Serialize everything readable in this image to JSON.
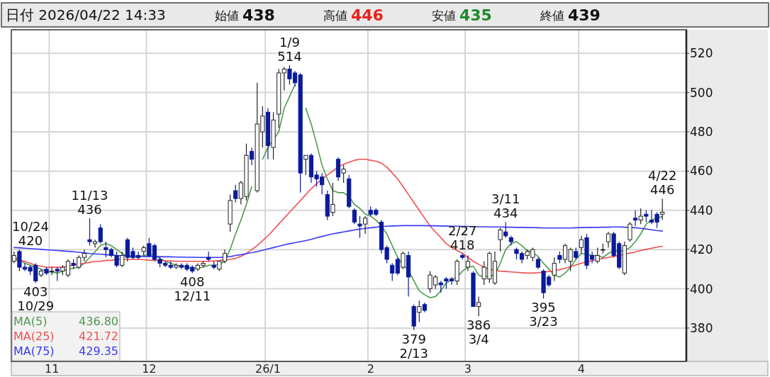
{
  "chart_data": {
    "type": "candlestick",
    "title": "日付 2026/04/22 14:33",
    "annotations": [
      "始値",
      "438",
      "高値",
      "446",
      "安値",
      "435",
      "終値",
      "439",
      {
        "text": "10/24\n420",
        "y": 420
      },
      {
        "text": "403\n10/29",
        "y": 403
      },
      {
        "text": "11/13\n436",
        "y": 436
      },
      {
        "text": "408\n12/11",
        "y": 408
      },
      {
        "text": "1/9\n514",
        "y": 514
      },
      {
        "text": "379\n2/13",
        "y": 379
      },
      {
        "text": "2/27\n418",
        "y": 418
      },
      {
        "text": "386\n3/4",
        "y": 386
      },
      {
        "text": "3/11\n434",
        "y": 434
      },
      {
        "text": "395\n3/23",
        "y": 395
      },
      {
        "text": "4/22\n446",
        "y": 446
      }
    ],
    "categories": [
      null,
      null,
      null,
      null,
      null,
      null,
      null,
      "11",
      null,
      null,
      null,
      null,
      null,
      null,
      null,
      null,
      null,
      null,
      null,
      null,
      null,
      null,
      null,
      null,
      null,
      "12",
      null,
      null,
      null,
      null,
      null,
      null,
      null,
      null,
      null,
      null,
      null,
      null,
      null,
      null,
      null,
      null,
      null,
      null,
      null,
      null,
      null,
      "26/1",
      null,
      null,
      null,
      null,
      null,
      null,
      null,
      null,
      null,
      null,
      null,
      null,
      null,
      null,
      null,
      null,
      null,
      null,
      "2",
      null,
      null,
      null,
      null,
      null,
      null,
      null,
      null,
      null,
      null,
      null,
      null,
      null,
      null,
      null,
      null,
      null,
      "3",
      null,
      null,
      null,
      null,
      null,
      null,
      null,
      null,
      null,
      null,
      null,
      null,
      null,
      null,
      null,
      null,
      null,
      null,
      null,
      null,
      "4",
      null,
      null,
      null,
      null,
      null,
      null,
      null,
      null,
      null,
      null,
      null,
      null,
      null,
      null,
      null
    ],
    "ohlc": [
      [
        414,
        419,
        413,
        417
      ],
      [
        419,
        420,
        409,
        411
      ],
      [
        411,
        413,
        409,
        410
      ],
      [
        411,
        412,
        407,
        409
      ],
      [
        412,
        413,
        403,
        404
      ],
      [
        407,
        410,
        406,
        409
      ],
      [
        410,
        411,
        407,
        408
      ],
      [
        409,
        411,
        407,
        409
      ],
      [
        410,
        411,
        404,
        409
      ],
      [
        409,
        412,
        407,
        411
      ],
      [
        407,
        415,
        406,
        414
      ],
      [
        413,
        415,
        410,
        412
      ],
      [
        411,
        417,
        410,
        416
      ],
      [
        416,
        420,
        414,
        418
      ],
      [
        425,
        436,
        422,
        424
      ],
      [
        423,
        425,
        421,
        424
      ],
      [
        431,
        433,
        423,
        424
      ],
      [
        421,
        424,
        416,
        420
      ],
      [
        420,
        421,
        416,
        417
      ],
      [
        417,
        419,
        411,
        412
      ],
      [
        412,
        419,
        411,
        417
      ],
      [
        425,
        426,
        414,
        416
      ],
      [
        419,
        421,
        415,
        416
      ],
      [
        417,
        419,
        415,
        416
      ],
      [
        419,
        422,
        417,
        421
      ],
      [
        423,
        426,
        416,
        417
      ],
      [
        422,
        423,
        414,
        415
      ],
      [
        415,
        416,
        411,
        413
      ],
      [
        413,
        414,
        411,
        412
      ],
      [
        412,
        414,
        410,
        411
      ],
      [
        411,
        413,
        410,
        412
      ],
      [
        412,
        413,
        410,
        411
      ],
      [
        412,
        413,
        409,
        410
      ],
      [
        411,
        412,
        408,
        409
      ],
      [
        410,
        413,
        409,
        412
      ],
      [
        412,
        414,
        411,
        413
      ],
      [
        416,
        419,
        414,
        415
      ],
      [
        412,
        414,
        410,
        411
      ],
      [
        410,
        414,
        409,
        414
      ],
      [
        414,
        420,
        413,
        418
      ],
      [
        433,
        448,
        429,
        445
      ],
      [
        450,
        453,
        444,
        446
      ],
      [
        446,
        455,
        443,
        454
      ],
      [
        447,
        474,
        445,
        468
      ],
      [
        470,
        472,
        463,
        466
      ],
      [
        450,
        505,
        449,
        484
      ],
      [
        480,
        493,
        472,
        488
      ],
      [
        490,
        492,
        466,
        473
      ],
      [
        472,
        490,
        466,
        486
      ],
      [
        489,
        512,
        482,
        510
      ],
      [
        510,
        513,
        501,
        512
      ],
      [
        512,
        514,
        504,
        507
      ],
      [
        510,
        511,
        503,
        505
      ],
      [
        509,
        510,
        449,
        459
      ],
      [
        466,
        468,
        458,
        468
      ],
      [
        468,
        469,
        454,
        457
      ],
      [
        458,
        460,
        452,
        456
      ],
      [
        457,
        459,
        448,
        453
      ],
      [
        448,
        450,
        435,
        437
      ],
      [
        439,
        454,
        437,
        443
      ],
      [
        466,
        467,
        455,
        457
      ],
      [
        459,
        463,
        454,
        461
      ],
      [
        456,
        458,
        441,
        442
      ],
      [
        440,
        441,
        433,
        434
      ],
      [
        433,
        437,
        426,
        432
      ],
      [
        433,
        437,
        428,
        436
      ],
      [
        440,
        442,
        437,
        438
      ],
      [
        440,
        441,
        437,
        438
      ],
      [
        434,
        435,
        418,
        420
      ],
      [
        421,
        422,
        413,
        415
      ],
      [
        412,
        413,
        404,
        408
      ],
      [
        415,
        416,
        407,
        408
      ],
      [
        411,
        419,
        410,
        418
      ],
      [
        417,
        419,
        396,
        406
      ],
      [
        391,
        392,
        379,
        381
      ],
      [
        388,
        394,
        383,
        391
      ],
      [
        392,
        393,
        388,
        389
      ],
      [
        400,
        409,
        398,
        407
      ],
      [
        402,
        407,
        400,
        406
      ],
      [
        403,
        404,
        398,
        402
      ],
      [
        405,
        406,
        400,
        404
      ],
      [
        405,
        406,
        402,
        404
      ],
      [
        404,
        415,
        402,
        414
      ],
      [
        417,
        418,
        415,
        416
      ],
      [
        411,
        417,
        409,
        414
      ],
      [
        408,
        409,
        391,
        391
      ],
      [
        391,
        396,
        386,
        393
      ],
      [
        405,
        414,
        402,
        411
      ],
      [
        405,
        419,
        403,
        418
      ],
      [
        403,
        419,
        402,
        414
      ],
      [
        425,
        431,
        419,
        430
      ],
      [
        429,
        434,
        426,
        427
      ],
      [
        426,
        427,
        422,
        424
      ],
      [
        420,
        421,
        415,
        418
      ],
      [
        418,
        419,
        413,
        415
      ],
      [
        417,
        420,
        415,
        419
      ],
      [
        416,
        421,
        414,
        420
      ],
      [
        415,
        416,
        410,
        411
      ],
      [
        409,
        410,
        395,
        398
      ],
      [
        406,
        407,
        401,
        402
      ],
      [
        407,
        416,
        404,
        413
      ],
      [
        417,
        419,
        413,
        415
      ],
      [
        415,
        423,
        413,
        422
      ],
      [
        414,
        421,
        409,
        420
      ],
      [
        419,
        421,
        415,
        416
      ],
      [
        421,
        427,
        418,
        425
      ],
      [
        426,
        428,
        410,
        412
      ],
      [
        417,
        419,
        413,
        415
      ],
      [
        414,
        421,
        413,
        417
      ],
      [
        420,
        423,
        418,
        420
      ],
      [
        424,
        429,
        421,
        428
      ],
      [
        428,
        429,
        416,
        417
      ],
      [
        423,
        424,
        410,
        411
      ],
      [
        408,
        424,
        407,
        422
      ],
      [
        425,
        434,
        424,
        433
      ],
      [
        436,
        440,
        432,
        435
      ],
      [
        435,
        441,
        433,
        437
      ],
      [
        438,
        440,
        434,
        437
      ],
      [
        435,
        440,
        433,
        434
      ],
      [
        438,
        439,
        431,
        434
      ],
      [
        438,
        446,
        435,
        439
      ]
    ],
    "series": [
      {
        "name": "MA(5) 436.80",
        "type": "line",
        "color": "#4f9a4f",
        "values": [
          416,
          415,
          413,
          412,
          411,
          410,
          409,
          408.5,
          408,
          409,
          410,
          410.5,
          411,
          413,
          416,
          419,
          422,
          423,
          422,
          420,
          418,
          416.5,
          416,
          416,
          417,
          417.5,
          417,
          415.5,
          414,
          413,
          412,
          411.5,
          411,
          410.5,
          410.5,
          411,
          412,
          412,
          412.5,
          414,
          420,
          428,
          435,
          443,
          452,
          null,
          466,
          472,
          476,
          480,
          492,
          498,
          504,
          null,
          492,
          484,
          474,
          463,
          456,
          450,
          449,
          449,
          447,
          443,
          441,
          438,
          437,
          435,
          432,
          428,
          422,
          416,
          412,
          409.5,
          404,
          399,
          397,
          395.5,
          396,
          399,
          403,
          404.5,
          406,
          409,
          411,
          411.5,
          407,
          406,
          406.5,
          407,
          413,
          420,
          423,
          424,
          422,
          419.5,
          418.5,
          416.5,
          413,
          410,
          407,
          406,
          408,
          411,
          415,
          418,
          417.5,
          417,
          417,
          416,
          418,
          419.5,
          419,
          419.5,
          421,
          424,
          428,
          433,
          435,
          436,
          436.8
        ]
      },
      {
        "name": "MA(25) 421.72",
        "type": "line",
        "color": "#f05050",
        "values": [
          415,
          414.5,
          414,
          413,
          412,
          411.5,
          411,
          411,
          411,
          411,
          411.5,
          412,
          412.5,
          413,
          413.5,
          414,
          414,
          414.5,
          414.5,
          415,
          415,
          415,
          415,
          415,
          414.8,
          414.6,
          414.5,
          414.4,
          414.3,
          414.2,
          414.1,
          414,
          414,
          414,
          414,
          414,
          414,
          414.2,
          414.4,
          414.7,
          415,
          415.5,
          416.5,
          418,
          420,
          422,
          424.5,
          427,
          430,
          433,
          436,
          439,
          442,
          445,
          448,
          451,
          453.5,
          456,
          458,
          460,
          462,
          463.5,
          464.5,
          465.5,
          466,
          466,
          465.5,
          465,
          464,
          462,
          459,
          456,
          452,
          448,
          444,
          440,
          436,
          432,
          429,
          426,
          423,
          421,
          419.5,
          418,
          416,
          414,
          412.5,
          411,
          410,
          409.5,
          409,
          408.8,
          408.6,
          408.4,
          408.2,
          408,
          408,
          408.2,
          408.5,
          408.8,
          409.2,
          409.8,
          410.5,
          411.3,
          412.2,
          413,
          413.7,
          414.3,
          414.9,
          415.5,
          416,
          416.5,
          417,
          417.6,
          418.2,
          418.8,
          419.5,
          420.1,
          420.7,
          421.2,
          421.7
        ]
      },
      {
        "name": "MA(75) 429.35",
        "type": "line",
        "color": "#3a3af0",
        "values": [
          421,
          420.9,
          420.7,
          420.5,
          420.3,
          420.1,
          419.9,
          419.7,
          419.5,
          419.3,
          419.1,
          418.9,
          418.6,
          418.3,
          418,
          417.8,
          417.6,
          417.4,
          417.2,
          417,
          416.9,
          416.8,
          416.7,
          416.6,
          416.5,
          416.5,
          416.4,
          416.4,
          416.3,
          416.3,
          416.2,
          416.2,
          416.1,
          416.1,
          416,
          416,
          416,
          416,
          416,
          416.2,
          416.4,
          417,
          417.4,
          417.9,
          418.4,
          419,
          419.6,
          420.3,
          421,
          421.7,
          422.4,
          423,
          423.5,
          424,
          424.6,
          425.2,
          426,
          426.7,
          427.4,
          428,
          428.5,
          429,
          429.5,
          430,
          430.4,
          430.8,
          431.1,
          431.4,
          431.7,
          431.9,
          432,
          432.1,
          432.2,
          432.2,
          432.2,
          432.2,
          432.2,
          432.1,
          432.1,
          432,
          432,
          431.9,
          431.9,
          431.8,
          431.8,
          431.7,
          431.6,
          431.6,
          431.5,
          431.5,
          431.5,
          431.4,
          431.4,
          431.3,
          431.3,
          431.2,
          431.2,
          431.1,
          431,
          431,
          431,
          431,
          431,
          431,
          431.1,
          431.2,
          431.2,
          431.3,
          431.3,
          431.4,
          431.4,
          431.5,
          431.5,
          431.4,
          431.3,
          431.1,
          430.8,
          430.5,
          430.1,
          429.7,
          429.4
        ]
      }
    ],
    "ylim": [
      363,
      532
    ],
    "yticks": [
      380,
      400,
      420,
      440,
      460,
      480,
      500,
      520
    ],
    "grid": true
  }
}
